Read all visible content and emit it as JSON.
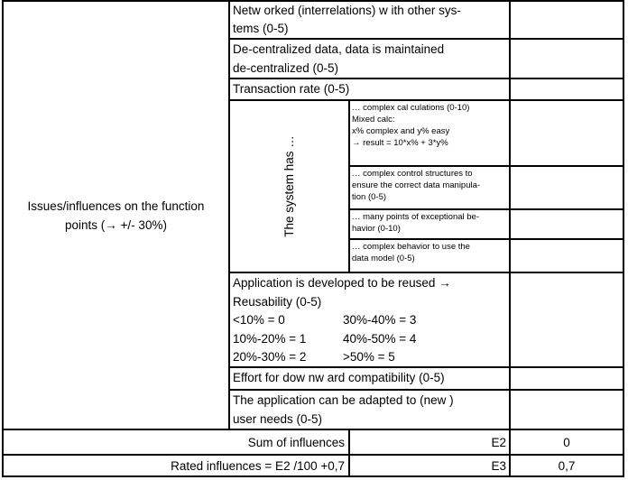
{
  "colors": {
    "border": "#000000",
    "background": "#ffffff",
    "text": "#000000"
  },
  "left_header": "Issues/influences on the function\npoints (→ +/- 30%)",
  "criteria": {
    "networked": {
      "text": "Netw orked (interrelations) w ith other sys-\ntems (0-5)",
      "value": ""
    },
    "decentralized": {
      "text": "De-centralized data, data is maintained\nde-centralized (0-5)",
      "value": ""
    },
    "transaction": {
      "text": "Transaction rate (0-5)",
      "value": ""
    }
  },
  "system_has": {
    "label": "The system has …",
    "items": [
      {
        "text": "… complex cal culations (0-10)\nMixed calc:\nx% complex and y% easy\n→ result = 10*x% + 3*y%",
        "value": ""
      },
      {
        "text": "… complex control structures to\nensure the correct data manipula-\ntion (0-5)",
        "value": ""
      },
      {
        "text": "… many points of exceptional be-\nhavior (0-10)",
        "value": ""
      },
      {
        "text": "… complex behavior to use the\ndata model (0-5)",
        "value": ""
      }
    ]
  },
  "reusability": {
    "intro": "Application is developed to be reused →\nReusability (0-5)",
    "scale": [
      {
        "left": "<10% = 0",
        "right": "30%-40% = 3"
      },
      {
        "left": "10%-20% = 1",
        "right": "40%-50% = 4"
      },
      {
        "left": "20%-30% = 2",
        "right": ">50% = 5"
      }
    ],
    "value": ""
  },
  "criteria2": {
    "downward": {
      "text": "Effort for dow nw ard compatibility (0-5)",
      "value": ""
    },
    "adapted": {
      "text": "The application can be adapted to (new )\nuser needs (0-5)",
      "value": ""
    }
  },
  "summary": {
    "sum": {
      "label": "Sum of influences",
      "code": "E2",
      "value": "0"
    },
    "rated": {
      "label": "Rated influences = E2 /100 +0,7",
      "code": "E3",
      "value": "0,7"
    }
  }
}
